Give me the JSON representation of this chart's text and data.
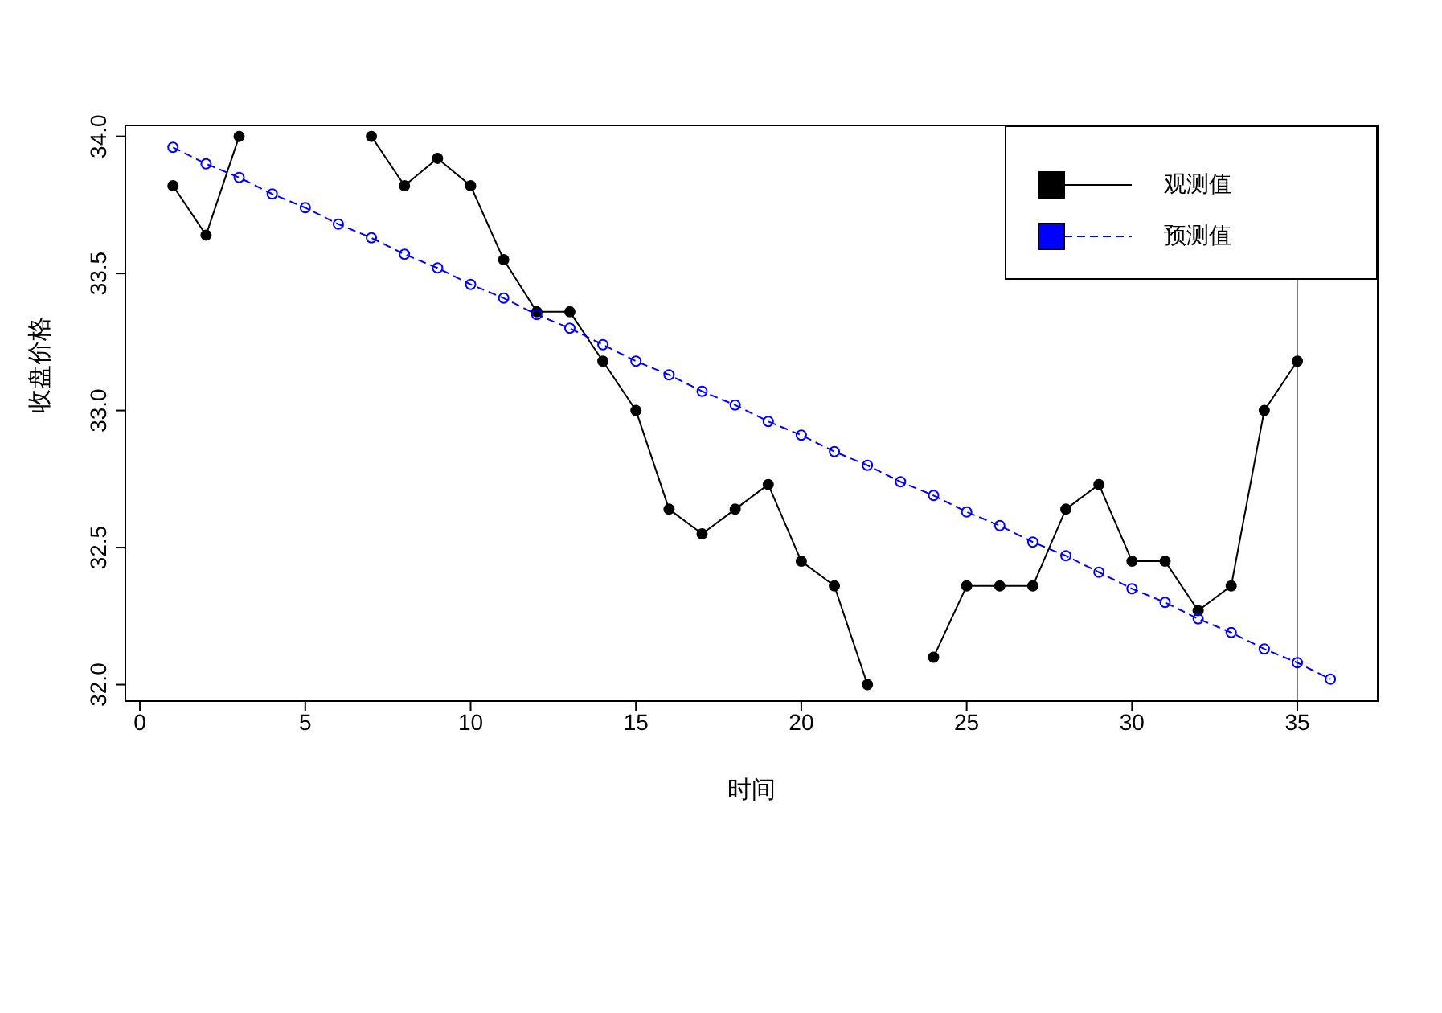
{
  "chart_data": {
    "type": "line",
    "xlabel": "时间",
    "ylabel": "收盘价格",
    "x": [
      1,
      2,
      3,
      4,
      5,
      6,
      7,
      8,
      9,
      10,
      11,
      12,
      13,
      14,
      15,
      16,
      17,
      18,
      19,
      20,
      21,
      22,
      23,
      24,
      25,
      26,
      27,
      28,
      29,
      30,
      31,
      32,
      33,
      34,
      35,
      36
    ],
    "series": [
      {
        "name": "观测值",
        "color": "#000000",
        "line_style": "solid",
        "marker": "circle",
        "values": [
          33.82,
          33.64,
          34.0,
          null,
          null,
          null,
          34.0,
          33.82,
          33.92,
          33.82,
          33.55,
          33.36,
          33.36,
          33.18,
          33.0,
          32.64,
          32.55,
          32.64,
          32.73,
          32.45,
          32.36,
          32.0,
          null,
          32.1,
          32.36,
          32.36,
          32.36,
          32.64,
          32.73,
          32.45,
          32.45,
          32.27,
          32.36,
          33.0,
          33.18,
          null
        ]
      },
      {
        "name": "预测值",
        "color": "#0000ff",
        "line_style": "dashed",
        "marker": "circle",
        "values": [
          33.96,
          33.9,
          33.85,
          33.79,
          33.74,
          33.68,
          33.63,
          33.57,
          33.52,
          33.46,
          33.41,
          33.35,
          33.3,
          33.24,
          33.18,
          33.13,
          33.07,
          33.02,
          32.96,
          32.91,
          32.85,
          32.8,
          32.74,
          32.69,
          32.63,
          32.58,
          32.52,
          32.47,
          32.41,
          32.35,
          32.3,
          32.24,
          32.19,
          32.13,
          32.08,
          32.02
        ]
      }
    ],
    "xlim": [
      -0.44,
      37.43
    ],
    "xticks": [
      0,
      5,
      10,
      15,
      20,
      25,
      30,
      35
    ],
    "ylim": [
      31.94,
      34.04
    ],
    "yticks": [
      {
        "value": 32,
        "label": "32.0"
      },
      {
        "value": 32.5,
        "label": "32.5"
      },
      {
        "value": 33,
        "label": "33.0"
      },
      {
        "value": 33.5,
        "label": "33.5"
      },
      {
        "value": 34,
        "label": "34.0"
      }
    ],
    "ref_lines": [
      {
        "axis": "x",
        "value": 35,
        "color": "#808080",
        "line_style": "solid"
      }
    ],
    "legend": "top right",
    "grid": false
  }
}
